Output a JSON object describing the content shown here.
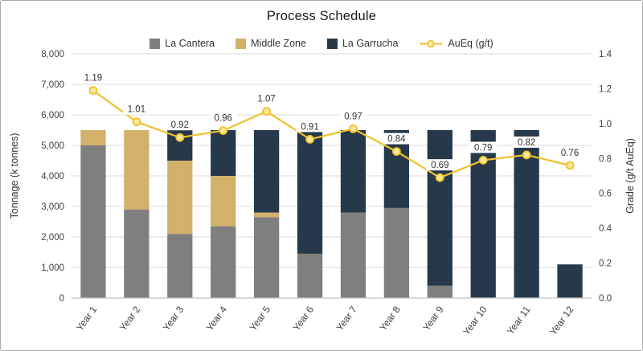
{
  "chart_data": {
    "type": "bar+line",
    "title": "Process Schedule",
    "categories": [
      "Year 1",
      "Year 2",
      "Year 3",
      "Year 4",
      "Year 5",
      "Year 6",
      "Year 7",
      "Year 8",
      "Year 9",
      "Year 10",
      "Year 11",
      "Year 12"
    ],
    "bar_series": [
      {
        "name": "La Cantera",
        "color": "#7f7f7f",
        "values": [
          5000,
          2900,
          2100,
          2350,
          2650,
          1450,
          2800,
          2950,
          400,
          0,
          0,
          0
        ]
      },
      {
        "name": "Middle Zone",
        "color": "#d2b16a",
        "values": [
          500,
          2600,
          2400,
          1650,
          150,
          0,
          0,
          0,
          0,
          0,
          0,
          0
        ]
      },
      {
        "name": "La Garrucha",
        "color": "#25394a",
        "values": [
          0,
          0,
          1000,
          1500,
          2700,
          4050,
          2700,
          2550,
          5100,
          5500,
          5500,
          1100
        ]
      }
    ],
    "line_series": {
      "name": "AuEq (g/t)",
      "color": "#f0c02e",
      "marker_fill": "#ffe699",
      "values": [
        1.19,
        1.01,
        0.92,
        0.96,
        1.07,
        0.91,
        0.97,
        0.84,
        0.69,
        0.79,
        0.82,
        0.76
      ],
      "labels": [
        "1.19",
        "1.01",
        "0.92",
        "0.96",
        "1.07",
        "0.91",
        "0.97",
        "0.84",
        "0.69",
        "0.79",
        "0.82",
        "0.76"
      ]
    },
    "left_axis": {
      "label": "Tonnage (k tonnes)",
      "min": 0,
      "max": 8000,
      "step": 1000,
      "ticks": [
        "0",
        "1,000",
        "2,000",
        "3,000",
        "4,000",
        "5,000",
        "6,000",
        "7,000",
        "8,000"
      ]
    },
    "right_axis": {
      "label": "Grade (g/t AuEq)",
      "min": 0,
      "max": 1.4,
      "step": 0.2,
      "ticks": [
        "0.0",
        "0.2",
        "0.4",
        "0.6",
        "0.8",
        "1.0",
        "1.2",
        "1.4"
      ]
    },
    "grid": true,
    "legend_position": "top",
    "gridline_color": "#d9d9d9",
    "axis_line_color": "#bfbfbf"
  }
}
